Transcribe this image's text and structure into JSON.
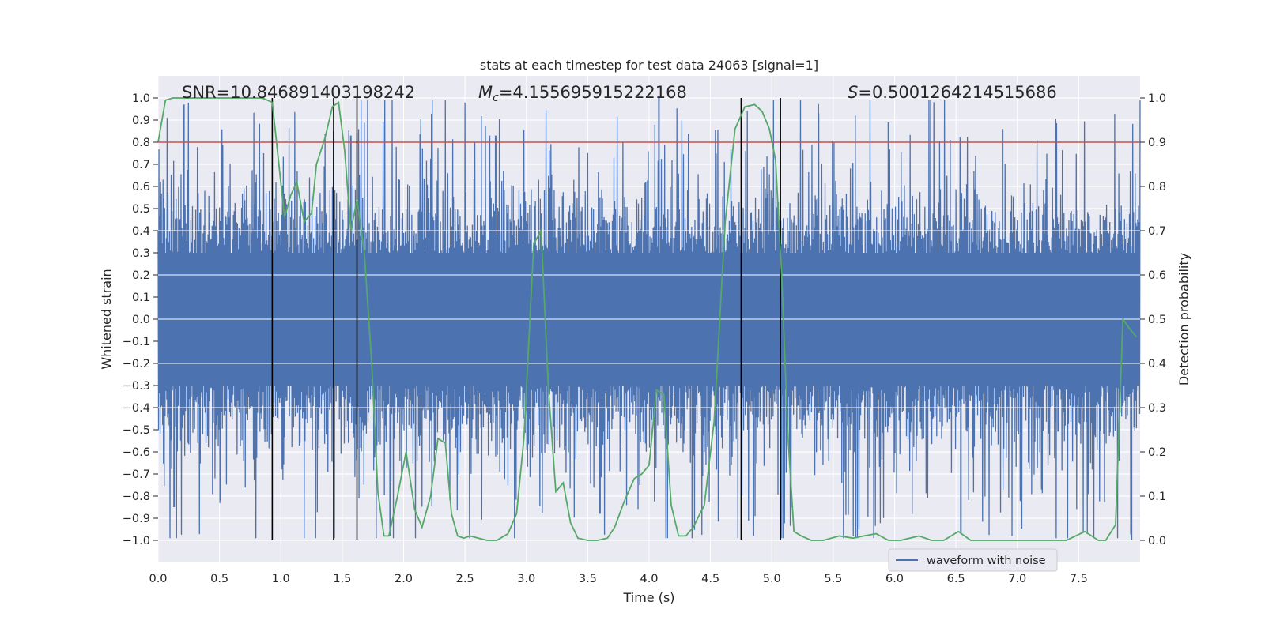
{
  "chart_data": {
    "type": "line",
    "title": "stats at each timestep for test data 24063 [signal=1]",
    "xlabel": "Time (s)",
    "ylabel": "Whitened strain",
    "y2label": "Detection probability",
    "xlim": [
      0.0,
      8.0
    ],
    "ylim": [
      -1.1,
      1.1
    ],
    "y2lim": [
      -0.05,
      1.05
    ],
    "x_ticks": [
      "0.0",
      "0.5",
      "1.0",
      "1.5",
      "2.0",
      "2.5",
      "3.0",
      "3.5",
      "4.0",
      "4.5",
      "5.0",
      "5.5",
      "6.0",
      "6.5",
      "7.0",
      "7.5"
    ],
    "y_ticks": [
      "1.0",
      "0.9",
      "0.8",
      "0.7",
      "0.6",
      "0.5",
      "0.4",
      "0.3",
      "0.2",
      "0.1",
      "0.0",
      "−0.1",
      "−0.2",
      "−0.3",
      "−0.4",
      "−0.5",
      "−0.6",
      "−0.7",
      "−0.8",
      "−0.9",
      "−1.0"
    ],
    "y2_ticks": [
      "1.0",
      "0.9",
      "0.8",
      "0.7",
      "0.6",
      "0.5",
      "0.4",
      "0.3",
      "0.2",
      "0.1",
      "0.0"
    ],
    "annotations": {
      "snr": "SNR=10.846891403198242",
      "mc_symbol": "M",
      "mc_sub": "c",
      "mc_value": "=4.155695915222168",
      "s_symbol": "S",
      "s_value": "=0.5001264214515686"
    },
    "threshold": {
      "value": 0.9,
      "axis": "right",
      "color": "#c44e52"
    },
    "vlines": [
      0.93,
      1.43,
      1.62,
      4.75,
      5.07
    ],
    "legend": {
      "label": "waveform with noise",
      "placement": "lower-right"
    },
    "series": [
      {
        "name": "waveform with noise",
        "axis": "left",
        "color": "#4c72b0",
        "style": "dense symmetric noise, envelope about ±0.4 with spikes to ±1.0",
        "peaks": [
          {
            "x": 0.21,
            "y": 0.97
          },
          {
            "x": 1.43,
            "y": 0.85
          },
          {
            "x": 1.57,
            "y": 0.83
          },
          {
            "x": 2.7,
            "y": 0.83
          },
          {
            "x": 2.75,
            "y": 0.83
          },
          {
            "x": 4.08,
            "y": 1.0
          },
          {
            "x": 5.38,
            "y": 0.93
          },
          {
            "x": 5.95,
            "y": 0.89
          },
          {
            "x": 6.88,
            "y": 0.86
          },
          {
            "x": 0.13,
            "y": -0.85
          },
          {
            "x": 1.89,
            "y": -0.98
          },
          {
            "x": 3.6,
            "y": -0.88
          },
          {
            "x": 4.85,
            "y": -0.98
          },
          {
            "x": 6.54,
            "y": -0.97
          },
          {
            "x": 7.93,
            "y": -1.0
          }
        ]
      },
      {
        "name": "detection probability",
        "axis": "right",
        "color": "#55a868",
        "x": [
          0.0,
          0.06,
          0.12,
          0.5,
          0.85,
          0.93,
          0.98,
          1.03,
          1.08,
          1.13,
          1.19,
          1.25,
          1.29,
          1.36,
          1.42,
          1.47,
          1.52,
          1.57,
          1.62,
          1.68,
          1.74,
          1.79,
          1.84,
          1.88,
          1.95,
          2.02,
          2.09,
          2.15,
          2.22,
          2.28,
          2.34,
          2.39,
          2.44,
          2.49,
          2.54,
          2.61,
          2.68,
          2.76,
          2.85,
          2.92,
          2.98,
          3.06,
          3.12,
          3.18,
          3.24,
          3.3,
          3.36,
          3.42,
          3.5,
          3.58,
          3.66,
          3.72,
          3.8,
          3.88,
          3.94,
          4.0,
          4.06,
          4.12,
          4.18,
          4.24,
          4.3,
          4.36,
          4.45,
          4.53,
          4.62,
          4.7,
          4.78,
          4.86,
          4.92,
          4.98,
          5.03,
          5.08,
          5.13,
          5.18,
          5.24,
          5.32,
          5.42,
          5.55,
          5.66,
          5.75,
          5.85,
          5.95,
          6.05,
          6.2,
          6.3,
          6.4,
          6.52,
          6.62,
          6.75,
          6.9,
          7.05,
          7.2,
          7.4,
          7.55,
          7.66,
          7.72,
          7.8,
          7.86,
          7.91,
          7.97
        ],
        "values": [
          0.9,
          0.995,
          1.0,
          1.0,
          1.0,
          0.99,
          0.86,
          0.73,
          0.78,
          0.81,
          0.72,
          0.74,
          0.85,
          0.91,
          0.98,
          0.99,
          0.88,
          0.7,
          0.77,
          0.65,
          0.4,
          0.11,
          0.01,
          0.01,
          0.1,
          0.2,
          0.07,
          0.03,
          0.1,
          0.23,
          0.22,
          0.06,
          0.01,
          0.005,
          0.01,
          0.005,
          0.0,
          0.0,
          0.015,
          0.06,
          0.23,
          0.67,
          0.7,
          0.34,
          0.11,
          0.13,
          0.04,
          0.005,
          0.0,
          0.0,
          0.005,
          0.03,
          0.09,
          0.14,
          0.15,
          0.17,
          0.34,
          0.33,
          0.08,
          0.01,
          0.01,
          0.03,
          0.08,
          0.27,
          0.72,
          0.93,
          0.98,
          0.985,
          0.97,
          0.93,
          0.86,
          0.6,
          0.24,
          0.02,
          0.01,
          0.0,
          0.0,
          0.01,
          0.005,
          0.01,
          0.015,
          0.0,
          0.0,
          0.01,
          0.0,
          0.0,
          0.02,
          0.0,
          0.0,
          0.0,
          0.0,
          0.0,
          0.0,
          0.02,
          0.0,
          0.0,
          0.035,
          0.5,
          0.48,
          0.46
        ]
      }
    ]
  }
}
